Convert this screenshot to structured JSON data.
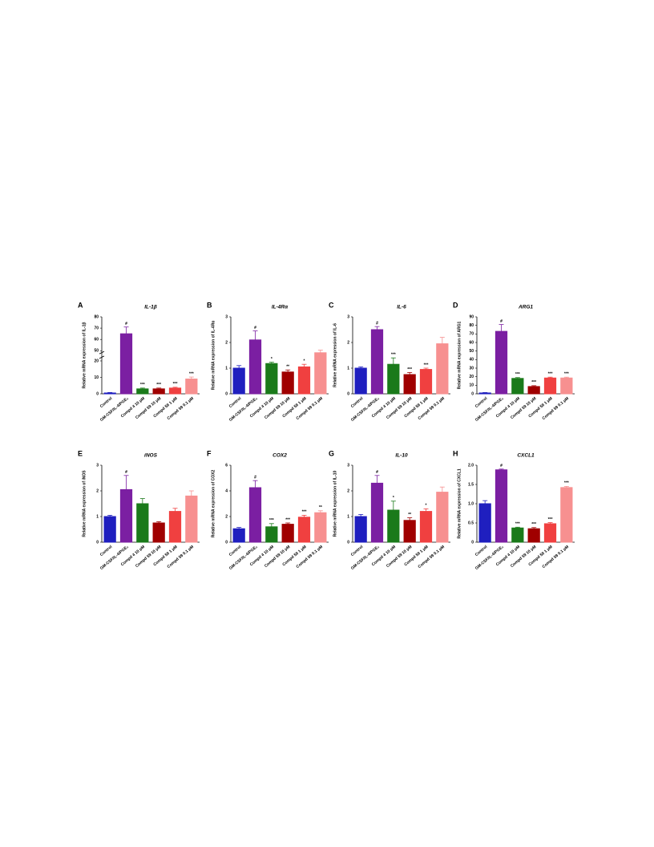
{
  "chart_data": [
    {
      "type": "bar",
      "panel": "A",
      "title": "IL-1β",
      "ylabel": "Relative mRNA expression of IL-1β",
      "categories": [
        "Control",
        "GM-CSF/IL-4/PGE₂",
        "Compd 4 10 μM",
        "Compd 59 10 μM",
        "Compd 59 1 μM",
        "Compd 59 0.1 μM"
      ],
      "values": [
        0.5,
        65,
        3,
        3,
        3.5,
        9
      ],
      "errors": [
        0.3,
        6,
        0.5,
        0.5,
        0.5,
        1.2
      ],
      "annotations": [
        "#",
        "***",
        "***",
        "***",
        "***"
      ],
      "annotated_bars": [
        1,
        2,
        3,
        4,
        5
      ],
      "colors": [
        "#1f1fbf",
        "#7b1fa2",
        "#1a7a1a",
        "#a00000",
        "#f04040",
        "#f79090"
      ],
      "ylim": [
        0,
        80
      ],
      "yticks": [
        0,
        10,
        20,
        50,
        60,
        70,
        80
      ],
      "axis_break": [
        22,
        48
      ]
    },
    {
      "type": "bar",
      "panel": "B",
      "title": "IL-4Rα",
      "ylabel": "Relative mRNA expression of IL-4Rα",
      "categories": [
        "Control",
        "GM-CSF/IL-4/PGE₂",
        "Compd 4 10 μM",
        "Compd 59 10 μM",
        "Compd 59 1 μM",
        "Compd 59 0.1 μM"
      ],
      "values": [
        1.0,
        2.1,
        1.18,
        0.85,
        1.05,
        1.6
      ],
      "errors": [
        0.1,
        0.35,
        0.05,
        0.08,
        0.1,
        0.1
      ],
      "annotations": [
        "#",
        "*",
        "**",
        "*"
      ],
      "annotated_bars": [
        1,
        2,
        3,
        4
      ],
      "colors": [
        "#1f1fbf",
        "#7b1fa2",
        "#1a7a1a",
        "#a00000",
        "#f04040",
        "#f79090"
      ],
      "ylim": [
        0,
        3
      ],
      "yticks": [
        0,
        1,
        2,
        3
      ]
    },
    {
      "type": "bar",
      "panel": "C",
      "title": "IL-6",
      "ylabel": "Relative mRNA expression of IL-6",
      "categories": [
        "Control",
        "GM-CSF/IL-4/PGE₂",
        "Compd 4 10 μM",
        "Compd 59 10 μM",
        "Compd 59 1 μM",
        "Compd 59 0.1 μM"
      ],
      "values": [
        1.0,
        2.5,
        1.15,
        0.75,
        0.95,
        1.95
      ],
      "errors": [
        0.05,
        0.12,
        0.25,
        0.08,
        0.05,
        0.25
      ],
      "annotations": [
        "#",
        "***",
        "***",
        "***"
      ],
      "annotated_bars": [
        1,
        2,
        3,
        4
      ],
      "colors": [
        "#1f1fbf",
        "#7b1fa2",
        "#1a7a1a",
        "#a00000",
        "#f04040",
        "#f79090"
      ],
      "ylim": [
        0,
        3
      ],
      "yticks": [
        0,
        1,
        2,
        3
      ]
    },
    {
      "type": "bar",
      "panel": "D",
      "title": "ARG1",
      "ylabel": "Relative mRNA expression of ARG1",
      "categories": [
        "Control",
        "GM-CSF/IL-4/PGE₂",
        "Compd 4 10 μM",
        "Compd 59 10 μM",
        "Compd 59 1 μM",
        "Compd 59 0.1 μM"
      ],
      "values": [
        1,
        73,
        18,
        8.5,
        18.5,
        18.5
      ],
      "errors": [
        0.5,
        8,
        1,
        1,
        1,
        1
      ],
      "annotations": [
        "#",
        "***",
        "***",
        "***",
        "***"
      ],
      "annotated_bars": [
        1,
        2,
        3,
        4,
        5
      ],
      "colors": [
        "#1f1fbf",
        "#7b1fa2",
        "#1a7a1a",
        "#a00000",
        "#f04040",
        "#f79090"
      ],
      "ylim": [
        0,
        90
      ],
      "yticks": [
        0,
        10,
        20,
        30,
        40,
        50,
        60,
        70,
        80,
        90
      ]
    },
    {
      "type": "bar",
      "panel": "E",
      "title": "iNOS",
      "ylabel": "Relative mRNA expression of iNOS",
      "categories": [
        "Control",
        "GM-CSF/IL-4/PGE₂",
        "Compd 4 10 μM",
        "Compd 59 10 μM",
        "Compd 59 1 μM",
        "Compd 59 0.1 μM"
      ],
      "values": [
        1.0,
        2.05,
        1.5,
        0.75,
        1.2,
        1.8
      ],
      "errors": [
        0.05,
        0.55,
        0.2,
        0.05,
        0.12,
        0.2
      ],
      "annotations": [
        "#"
      ],
      "annotated_bars": [
        1
      ],
      "colors": [
        "#1f1fbf",
        "#7b1fa2",
        "#1a7a1a",
        "#a00000",
        "#f04040",
        "#f79090"
      ],
      "ylim": [
        0,
        3
      ],
      "yticks": [
        0,
        1,
        2,
        3
      ]
    },
    {
      "type": "bar",
      "panel": "F",
      "title": "COX2",
      "ylabel": "Relative mRNA expression of COX2",
      "categories": [
        "Control",
        "GM-CSF/IL-4/PGE₂",
        "Compd 4 10 μM",
        "Compd 59 10 μM",
        "Compd 59 1 μM",
        "Compd 59 0.1 μM"
      ],
      "values": [
        1.05,
        4.25,
        1.2,
        1.4,
        1.95,
        2.3
      ],
      "errors": [
        0.1,
        0.55,
        0.25,
        0.1,
        0.15,
        0.15
      ],
      "annotations": [
        "#",
        "***",
        "***",
        "***",
        "**"
      ],
      "annotated_bars": [
        1,
        2,
        3,
        4,
        5
      ],
      "colors": [
        "#1f1fbf",
        "#7b1fa2",
        "#1a7a1a",
        "#a00000",
        "#f04040",
        "#f79090"
      ],
      "ylim": [
        0,
        6
      ],
      "yticks": [
        0,
        2,
        4,
        6
      ]
    },
    {
      "type": "bar",
      "panel": "G",
      "title": "IL-10",
      "ylabel": "Relative mRNA expression of IL-10",
      "categories": [
        "Control",
        "GM-CSF/IL-4/PGE₂",
        "Compd 4 10 μM",
        "Compd 59 10 μM",
        "Compd 59 1 μM",
        "Compd 59 0.1 μM"
      ],
      "values": [
        1.0,
        2.3,
        1.25,
        0.85,
        1.2,
        1.95
      ],
      "errors": [
        0.08,
        0.3,
        0.35,
        0.1,
        0.1,
        0.2
      ],
      "annotations": [
        "#",
        "*",
        "**",
        "*"
      ],
      "annotated_bars": [
        1,
        2,
        3,
        4
      ],
      "colors": [
        "#1f1fbf",
        "#7b1fa2",
        "#1a7a1a",
        "#a00000",
        "#f04040",
        "#f79090"
      ],
      "ylim": [
        0,
        3
      ],
      "yticks": [
        0,
        1,
        2,
        3
      ]
    },
    {
      "type": "bar",
      "panel": "H",
      "title": "CXCL1",
      "ylabel": "Relative mRNA expression of CXCL1",
      "categories": [
        "Control",
        "GM-CSF/IL-4/PGE₂",
        "Compd 4 10 μM",
        "Compd 59 10 μM",
        "Compd 59 1 μM",
        "Compd 59 0.1 μM"
      ],
      "values": [
        1.0,
        1.88,
        0.37,
        0.35,
        0.48,
        1.42
      ],
      "errors": [
        0.08,
        0.02,
        0.02,
        0.03,
        0.03,
        0.03
      ],
      "annotations": [
        "#",
        "***",
        "***",
        "***",
        "***"
      ],
      "annotated_bars": [
        1,
        2,
        3,
        4,
        5
      ],
      "colors": [
        "#1f1fbf",
        "#7b1fa2",
        "#1a7a1a",
        "#a00000",
        "#f04040",
        "#f79090"
      ],
      "ylim": [
        0,
        2.0
      ],
      "yticks": [
        0,
        0.5,
        {
          "value": 1.0,
          "label": "1.0"
        },
        1.5,
        {
          "value": 2.0,
          "label": "2.0"
        }
      ]
    }
  ]
}
